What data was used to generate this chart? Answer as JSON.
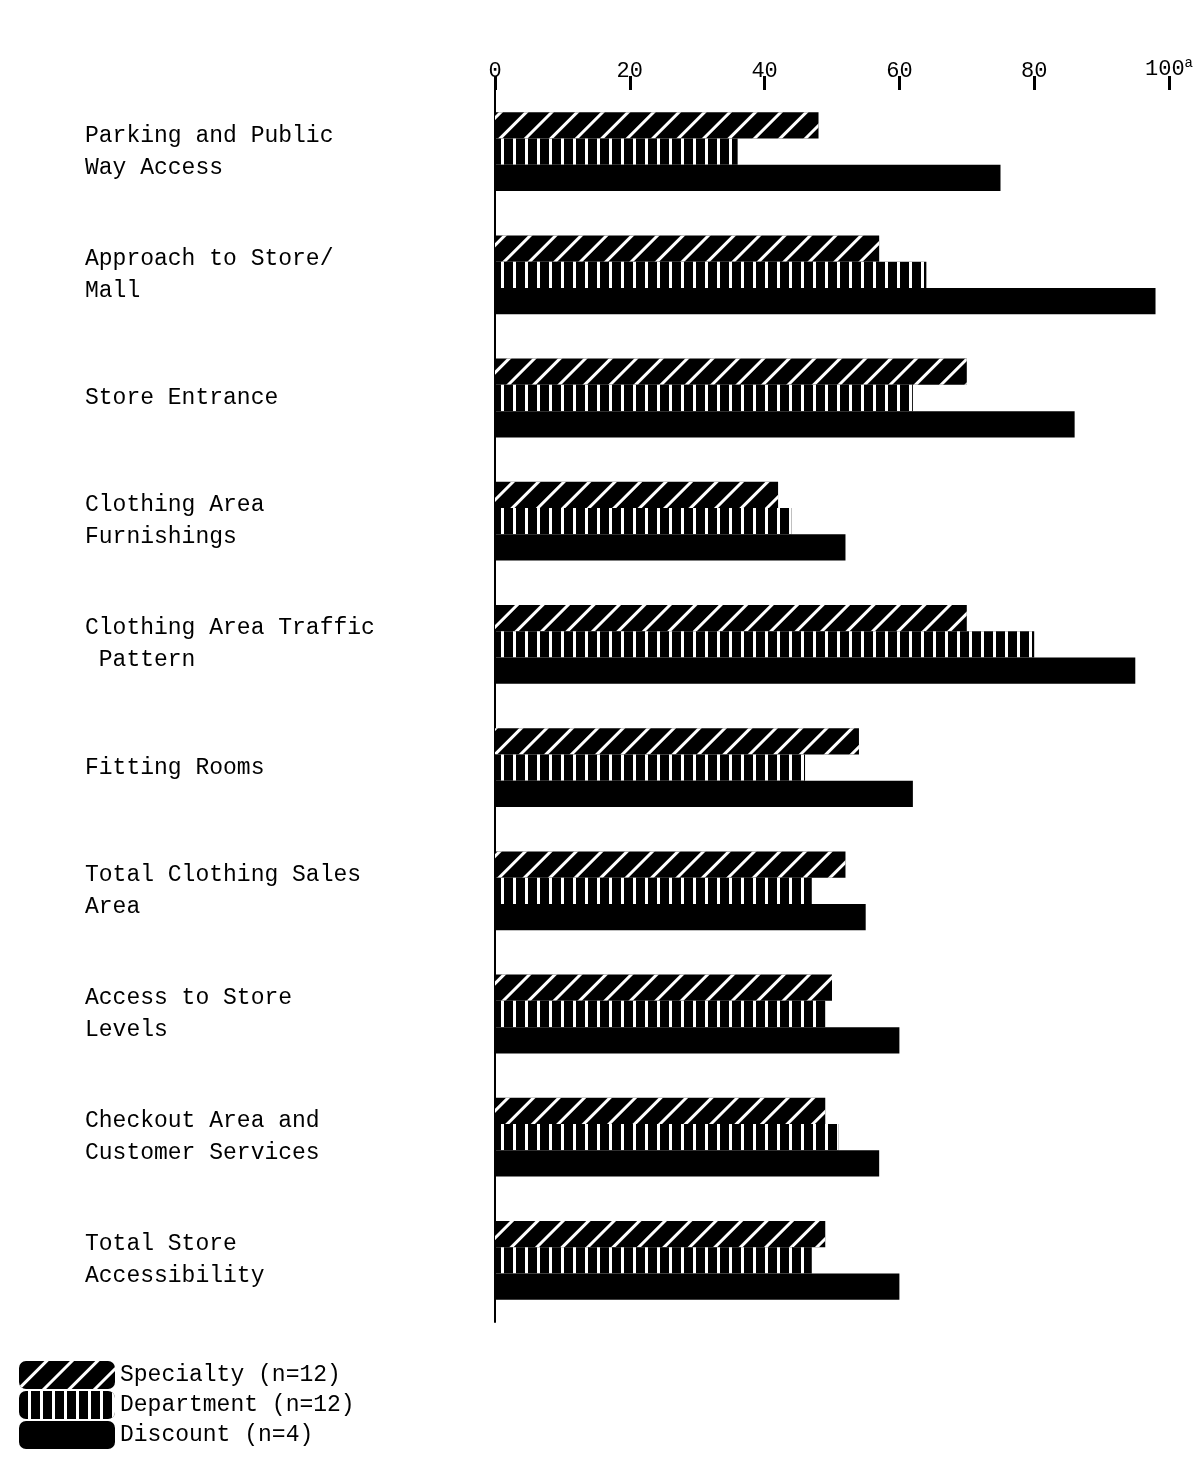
{
  "chart_data": {
    "type": "bar",
    "orientation": "horizontal",
    "categories": [
      "Parking and Public Way Access",
      "Approach to Store/ Mall",
      "Store Entrance",
      "Clothing Area Furnishings",
      "Clothing Area Traffic Pattern",
      "Fitting Rooms",
      "Total Clothing Sales Area",
      "Access to Store Levels",
      "Checkout Area and Customer Services",
      "Total Store Accessibility"
    ],
    "series": [
      {
        "name": "Specialty (n=12)",
        "color": "#000000",
        "values": [
          48,
          57,
          70,
          42,
          70,
          54,
          52,
          50,
          49,
          49
        ]
      },
      {
        "name": "Department (n=12)",
        "color": "#000000",
        "values": [
          36,
          64,
          62,
          44,
          80,
          46,
          47,
          49,
          51,
          47
        ]
      },
      {
        "name": "Discount (n=4)",
        "color": "#000000",
        "values": [
          75,
          98,
          86,
          52,
          95,
          62,
          55,
          60,
          57,
          60
        ]
      }
    ],
    "xlim": [
      0,
      100
    ],
    "xticks": [
      0,
      20,
      40,
      60,
      80,
      {
        "value": 100,
        "label": "100$^{a}$"
      }
    ],
    "grid": false,
    "legend": "bottom left"
  }
}
